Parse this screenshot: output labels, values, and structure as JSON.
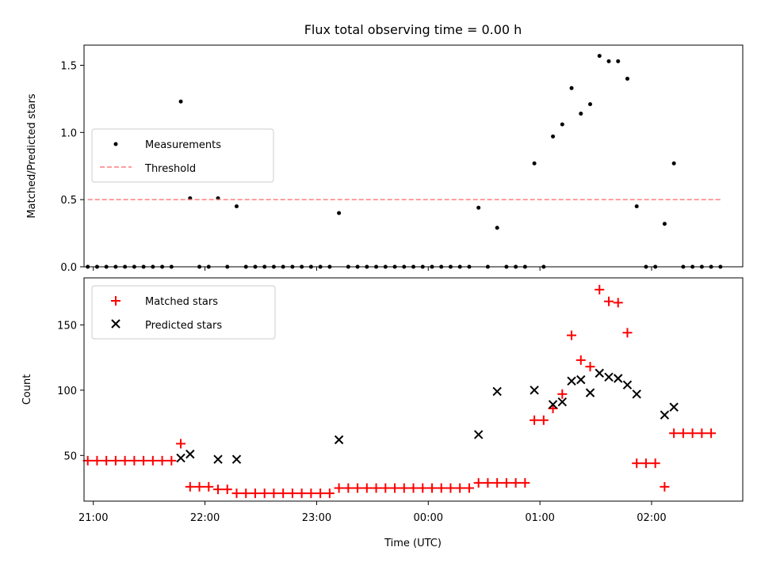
{
  "chart_data": [
    {
      "type": "scatter",
      "title": "Flux total observing time = 0.00 h",
      "ylabel": "Matched/Predicted stars",
      "xlabel": "",
      "xlim": [
        "20:55",
        "02:49"
      ],
      "ylim": [
        0,
        1.65
      ],
      "x_ticks": [
        "21:00",
        "22:00",
        "23:00",
        "00:00",
        "01:00",
        "02:00"
      ],
      "y_ticks": [
        "0.0",
        "0.5",
        "1.0",
        "1.5"
      ],
      "legend_position": "center-left",
      "series": [
        {
          "name": "Measurements",
          "style": "dot",
          "color": "#000000",
          "points": [
            [
              "20:57",
              0
            ],
            [
              "21:02",
              0
            ],
            [
              "21:07",
              0
            ],
            [
              "21:12",
              0
            ],
            [
              "21:17",
              0
            ],
            [
              "21:22",
              0
            ],
            [
              "21:27",
              0
            ],
            [
              "21:32",
              0
            ],
            [
              "21:37",
              0
            ],
            [
              "21:42",
              0
            ],
            [
              "21:47",
              1.23
            ],
            [
              "21:52",
              0.51
            ],
            [
              "21:57",
              0
            ],
            [
              "22:02",
              0
            ],
            [
              "22:07",
              0.51
            ],
            [
              "22:12",
              0
            ],
            [
              "22:17",
              0.45
            ],
            [
              "22:22",
              0
            ],
            [
              "22:27",
              0
            ],
            [
              "22:32",
              0
            ],
            [
              "22:37",
              0
            ],
            [
              "22:42",
              0
            ],
            [
              "22:47",
              0
            ],
            [
              "22:52",
              0
            ],
            [
              "22:57",
              0
            ],
            [
              "23:02",
              0
            ],
            [
              "23:07",
              0
            ],
            [
              "23:12",
              0.4
            ],
            [
              "23:17",
              0
            ],
            [
              "23:22",
              0
            ],
            [
              "23:27",
              0
            ],
            [
              "23:32",
              0
            ],
            [
              "23:37",
              0
            ],
            [
              "23:42",
              0
            ],
            [
              "23:47",
              0
            ],
            [
              "23:52",
              0
            ],
            [
              "23:57",
              0
            ],
            [
              "00:02",
              0
            ],
            [
              "00:07",
              0
            ],
            [
              "00:12",
              0
            ],
            [
              "00:17",
              0
            ],
            [
              "00:22",
              0
            ],
            [
              "00:27",
              0.44
            ],
            [
              "00:32",
              0
            ],
            [
              "00:37",
              0.29
            ],
            [
              "00:42",
              0
            ],
            [
              "00:47",
              0
            ],
            [
              "00:52",
              0
            ],
            [
              "00:57",
              0.77
            ],
            [
              "01:02",
              0
            ],
            [
              "01:07",
              0.97
            ],
            [
              "01:12",
              1.06
            ],
            [
              "01:17",
              1.33
            ],
            [
              "01:22",
              1.14
            ],
            [
              "01:27",
              1.21
            ],
            [
              "01:32",
              1.57
            ],
            [
              "01:37",
              1.53
            ],
            [
              "01:42",
              1.53
            ],
            [
              "01:47",
              1.4
            ],
            [
              "01:52",
              0.45
            ],
            [
              "01:57",
              0
            ],
            [
              "02:02",
              0
            ],
            [
              "02:07",
              0.32
            ],
            [
              "02:12",
              0.77
            ],
            [
              "02:17",
              0
            ],
            [
              "02:22",
              0
            ],
            [
              "02:27",
              0
            ],
            [
              "02:32",
              0
            ],
            [
              "02:37",
              0
            ]
          ]
        },
        {
          "name": "Threshold",
          "style": "dashed-line",
          "color": "#ff7f7f",
          "points": [
            [
              "20:57",
              0.5
            ],
            [
              "02:37",
              0.5
            ]
          ]
        }
      ]
    },
    {
      "type": "scatter",
      "title": "",
      "ylabel": "Count",
      "xlabel": "Time (UTC)",
      "xlim": [
        "20:55",
        "02:49"
      ],
      "ylim": [
        15,
        186
      ],
      "x_ticks": [
        "21:00",
        "22:00",
        "23:00",
        "00:00",
        "01:00",
        "02:00"
      ],
      "y_ticks": [
        "50",
        "100",
        "150"
      ],
      "legend_position": "top-left",
      "series": [
        {
          "name": "Matched stars",
          "style": "plus",
          "color": "#ff0000",
          "points": [
            [
              "20:57",
              46
            ],
            [
              "21:02",
              46
            ],
            [
              "21:07",
              46
            ],
            [
              "21:12",
              46
            ],
            [
              "21:17",
              46
            ],
            [
              "21:22",
              46
            ],
            [
              "21:27",
              46
            ],
            [
              "21:32",
              46
            ],
            [
              "21:37",
              46
            ],
            [
              "21:42",
              46
            ],
            [
              "21:47",
              59
            ],
            [
              "21:52",
              26
            ],
            [
              "21:57",
              26
            ],
            [
              "22:02",
              26
            ],
            [
              "22:07",
              24
            ],
            [
              "22:12",
              24
            ],
            [
              "22:17",
              21
            ],
            [
              "22:22",
              21
            ],
            [
              "22:27",
              21
            ],
            [
              "22:32",
              21
            ],
            [
              "22:37",
              21
            ],
            [
              "22:42",
              21
            ],
            [
              "22:47",
              21
            ],
            [
              "22:52",
              21
            ],
            [
              "22:57",
              21
            ],
            [
              "23:02",
              21
            ],
            [
              "23:07",
              21
            ],
            [
              "23:12",
              25
            ],
            [
              "23:17",
              25
            ],
            [
              "23:22",
              25
            ],
            [
              "23:27",
              25
            ],
            [
              "23:32",
              25
            ],
            [
              "23:37",
              25
            ],
            [
              "23:42",
              25
            ],
            [
              "23:47",
              25
            ],
            [
              "23:52",
              25
            ],
            [
              "23:57",
              25
            ],
            [
              "00:02",
              25
            ],
            [
              "00:07",
              25
            ],
            [
              "00:12",
              25
            ],
            [
              "00:17",
              25
            ],
            [
              "00:22",
              25
            ],
            [
              "00:27",
              29
            ],
            [
              "00:32",
              29
            ],
            [
              "00:37",
              29
            ],
            [
              "00:42",
              29
            ],
            [
              "00:47",
              29
            ],
            [
              "00:52",
              29
            ],
            [
              "00:57",
              77
            ],
            [
              "01:02",
              77
            ],
            [
              "01:07",
              86
            ],
            [
              "01:12",
              97
            ],
            [
              "01:17",
              142
            ],
            [
              "01:22",
              123
            ],
            [
              "01:27",
              118
            ],
            [
              "01:32",
              177
            ],
            [
              "01:37",
              168
            ],
            [
              "01:42",
              167
            ],
            [
              "01:47",
              144
            ],
            [
              "01:52",
              44
            ],
            [
              "01:57",
              44
            ],
            [
              "02:02",
              44
            ],
            [
              "02:07",
              26
            ],
            [
              "02:12",
              67
            ],
            [
              "02:17",
              67
            ],
            [
              "02:22",
              67
            ],
            [
              "02:27",
              67
            ],
            [
              "02:32",
              67
            ]
          ]
        },
        {
          "name": "Predicted stars",
          "style": "x",
          "color": "#000000",
          "points": [
            [
              "21:47",
              48
            ],
            [
              "21:52",
              51
            ],
            [
              "22:07",
              47
            ],
            [
              "22:17",
              47
            ],
            [
              "23:12",
              62
            ],
            [
              "00:27",
              66
            ],
            [
              "00:37",
              99
            ],
            [
              "00:57",
              100
            ],
            [
              "01:07",
              89
            ],
            [
              "01:12",
              91
            ],
            [
              "01:17",
              107
            ],
            [
              "01:22",
              108
            ],
            [
              "01:27",
              98
            ],
            [
              "01:32",
              113
            ],
            [
              "01:37",
              110
            ],
            [
              "01:42",
              109
            ],
            [
              "01:47",
              104
            ],
            [
              "01:52",
              97
            ],
            [
              "02:07",
              81
            ],
            [
              "02:12",
              87
            ]
          ]
        }
      ]
    }
  ]
}
